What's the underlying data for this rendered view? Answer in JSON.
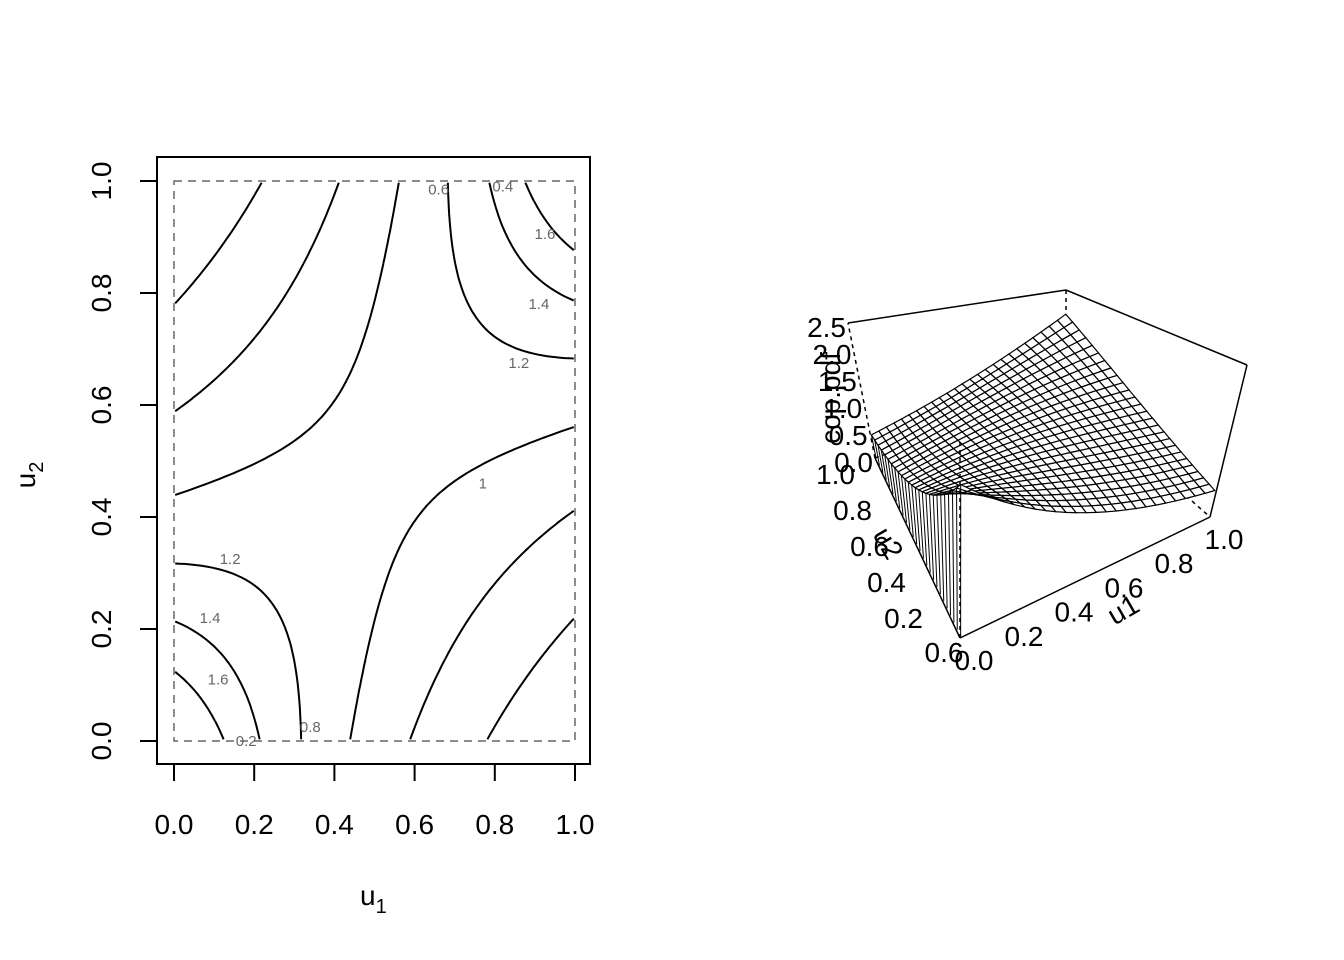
{
  "chart_data": [
    {
      "type": "contour",
      "xlabel": "u",
      "xlabel_sub": "1",
      "ylabel": "u",
      "ylabel_sub": "2",
      "xlim": [
        0,
        1
      ],
      "ylim": [
        0,
        1
      ],
      "x_ticks": [
        "0.0",
        "0.2",
        "0.4",
        "0.6",
        "0.8",
        "1.0"
      ],
      "y_ticks": [
        "0.0",
        "0.2",
        "0.4",
        "0.6",
        "0.8",
        "1.0"
      ],
      "dashed_unit_square": true,
      "contour_levels": [
        0.2,
        0.4,
        0.6,
        0.8,
        1,
        1.2,
        1.4,
        1.6
      ],
      "contour_labels": [
        {
          "text": "0.2",
          "x": 0.18,
          "y": 0.0
        },
        {
          "text": "0.8",
          "x": 0.34,
          "y": 0.025
        },
        {
          "text": "1.2",
          "x": 0.14,
          "y": 0.325
        },
        {
          "text": "1.4",
          "x": 0.09,
          "y": 0.22
        },
        {
          "text": "1.6",
          "x": 0.11,
          "y": 0.11
        },
        {
          "text": "1",
          "x": 0.77,
          "y": 0.46
        },
        {
          "text": "1.2",
          "x": 0.86,
          "y": 0.675
        },
        {
          "text": "1.4",
          "x": 0.91,
          "y": 0.78
        },
        {
          "text": "1.6",
          "x": 0.925,
          "y": 0.905
        },
        {
          "text": "0.6",
          "x": 0.66,
          "y": 0.985
        },
        {
          "text": "0.4",
          "x": 0.82,
          "y": 0.99
        }
      ],
      "grid": false
    },
    {
      "type": "surface3d",
      "zlabel": "cop.pdf",
      "xlabel": "u1",
      "ylabel": "u2",
      "z_ticks": [
        "0.0",
        "0.5",
        "1.0",
        "1.5",
        "2.0",
        "2.5"
      ],
      "x_ticks": [
        "0.0",
        "0.2",
        "0.4",
        "0.6",
        "0.8",
        "1.0"
      ],
      "y_ticks": [
        "0.2",
        "0.4",
        "0.6",
        "0.8",
        "1.0"
      ],
      "xlim": [
        0,
        1
      ],
      "ylim": [
        0,
        1
      ],
      "zlim": [
        0,
        2.5
      ],
      "grid": false
    }
  ]
}
